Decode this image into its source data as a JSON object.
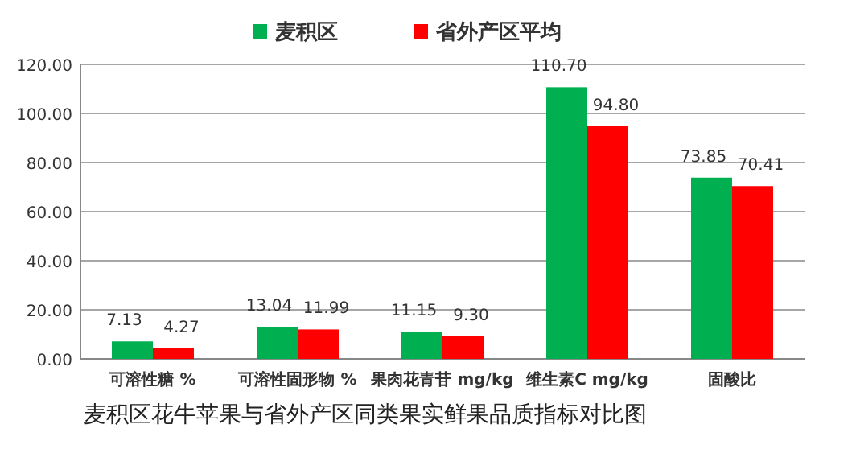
{
  "chart_data": {
    "type": "bar",
    "title": "麦积区花牛苹果与省外产区同类果实鲜果品质指标对比图",
    "categories": [
      "可溶性糖 %",
      "可溶性固形物 %",
      "果肉花青苷 mg/kg",
      "维生素C mg/kg",
      "固酸比"
    ],
    "series": [
      {
        "name": "麦积区",
        "color": "#00b050",
        "values": [
          7.13,
          13.04,
          11.15,
          110.7,
          73.85
        ],
        "value_labels": [
          "7.13",
          "13.04",
          "11.15",
          "110.70",
          "73.85"
        ]
      },
      {
        "name": "省外产区平均",
        "color": "#ff0000",
        "values": [
          4.27,
          11.99,
          9.3,
          94.8,
          70.41
        ],
        "value_labels": [
          "4.27",
          "11.99",
          "9.30",
          "94.80",
          "70.41"
        ]
      }
    ],
    "ylim": [
      0,
      120
    ],
    "yticks": [
      {
        "value": 0,
        "label": "0.00"
      },
      {
        "value": 20,
        "label": "20.00"
      },
      {
        "value": 40,
        "label": "40.00"
      },
      {
        "value": 60,
        "label": "60.00"
      },
      {
        "value": 80,
        "label": "80.00"
      },
      {
        "value": 100,
        "label": "100.00"
      },
      {
        "value": 120,
        "label": "120.00"
      }
    ],
    "grid": "y",
    "legend": "top"
  }
}
